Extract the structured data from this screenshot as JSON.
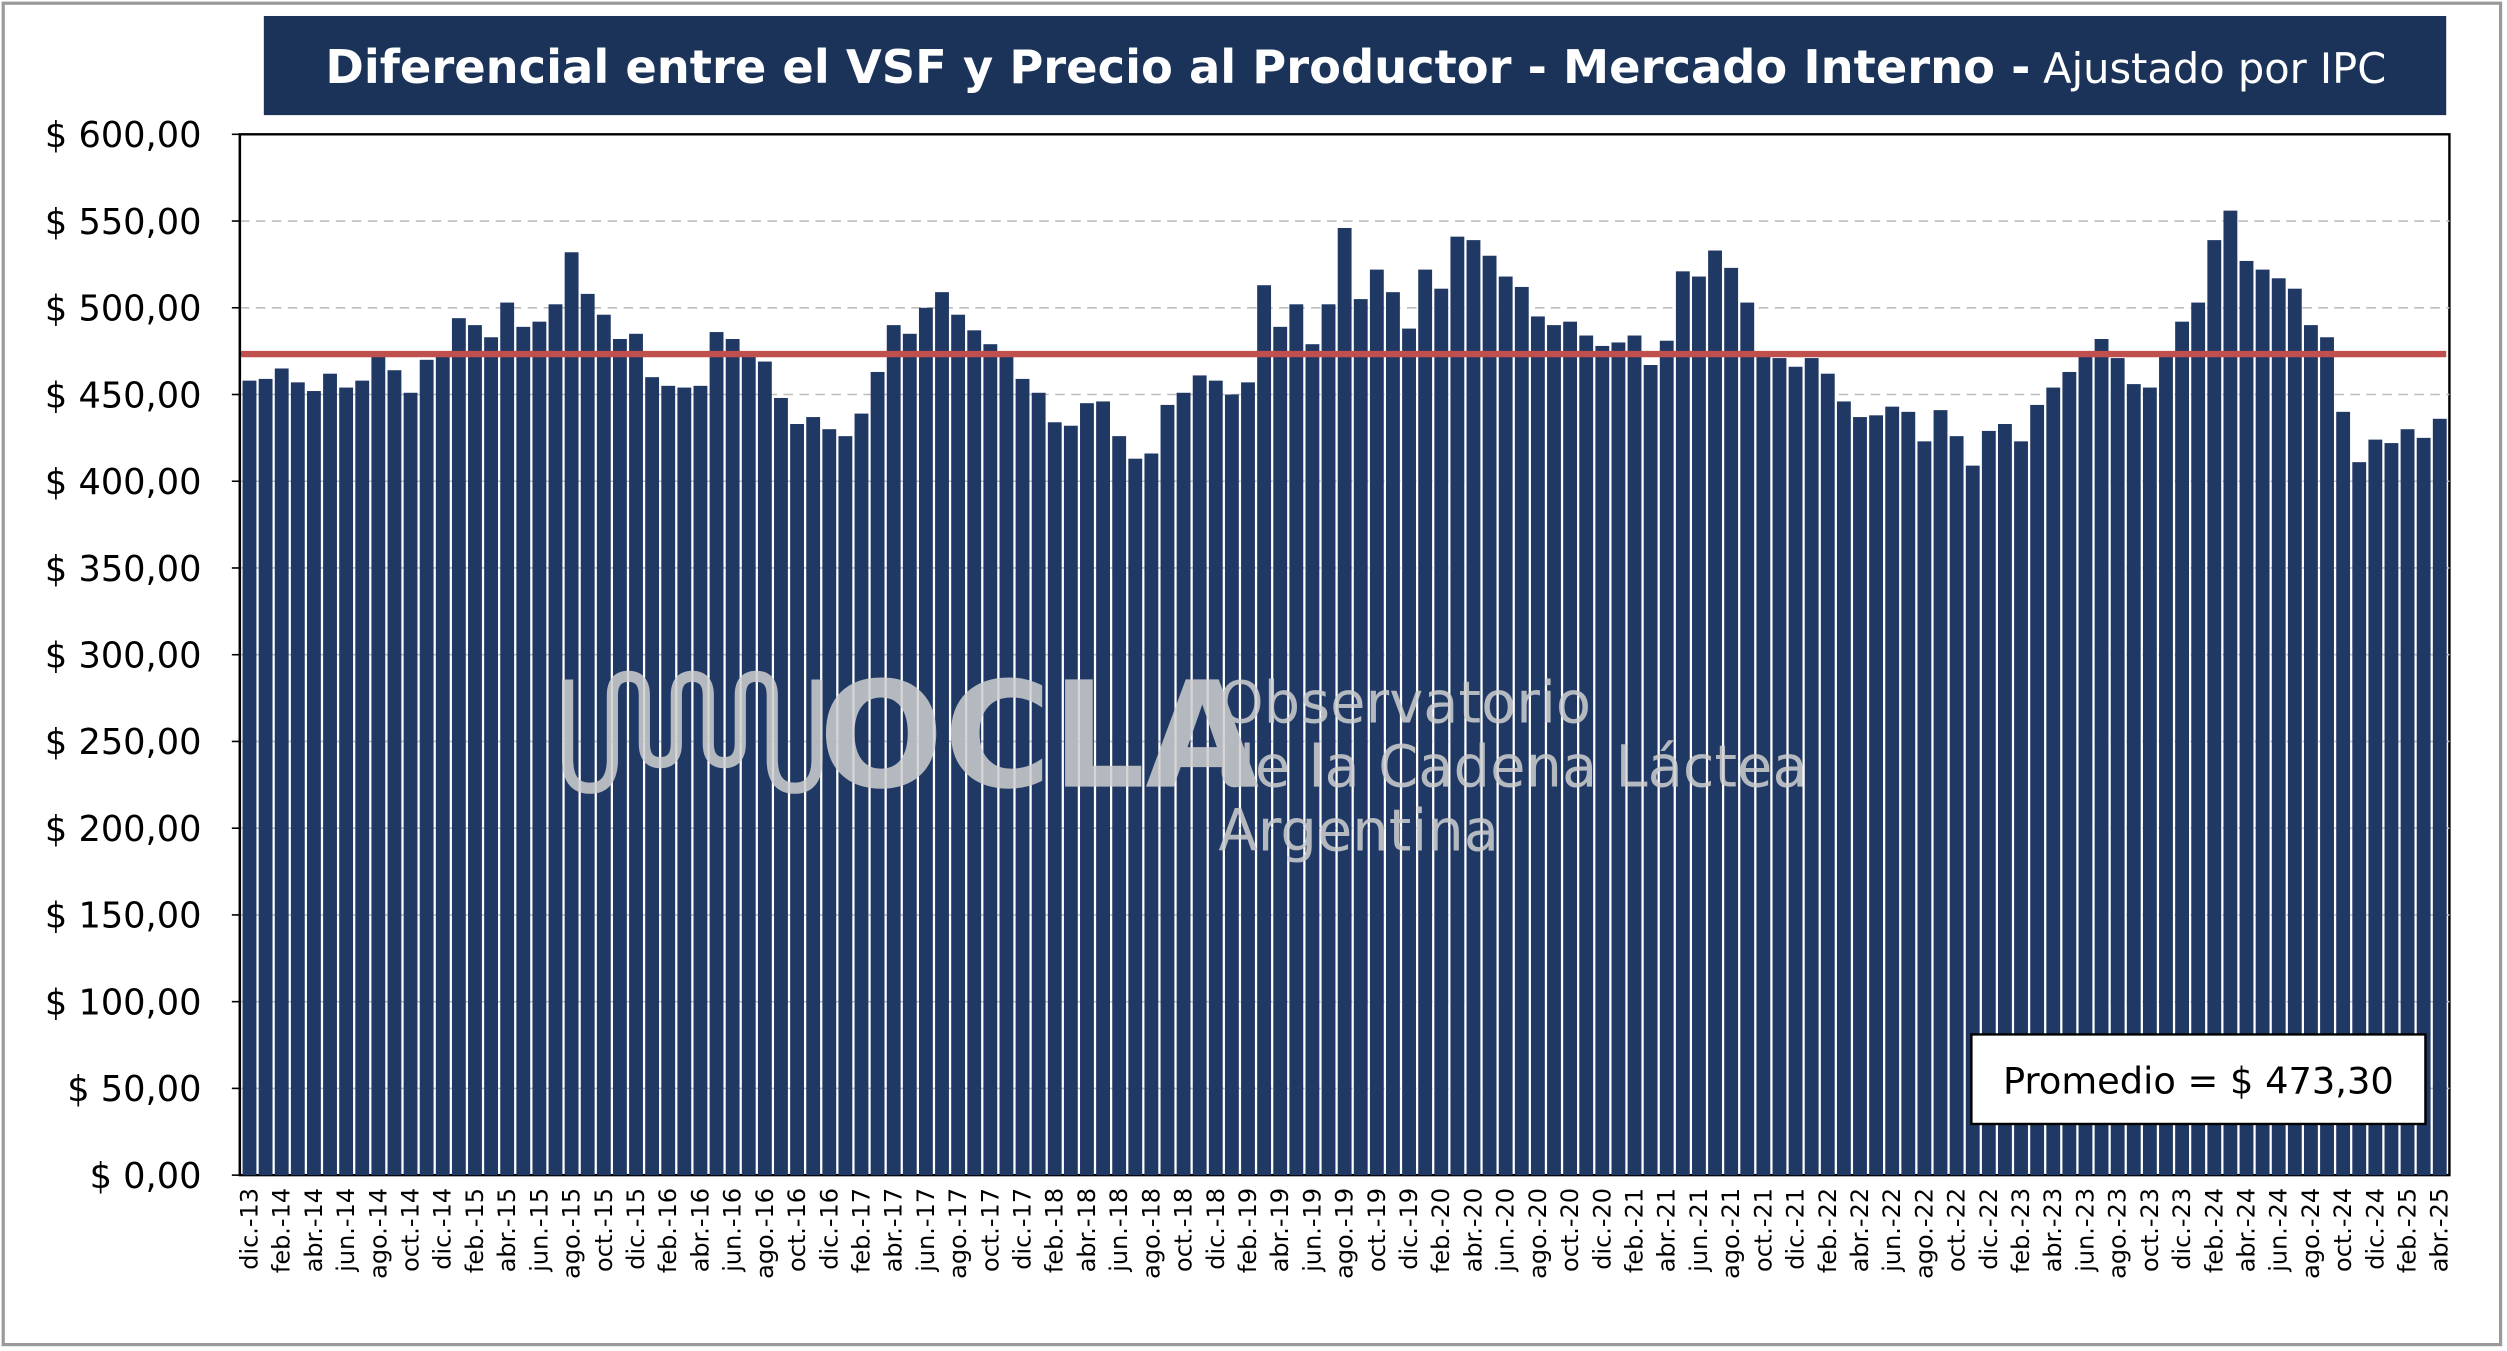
{
  "chart_data": {
    "type": "bar",
    "title": "Diferencial entre el VSF y Precio al Productor - Mercado Interno -",
    "subtitle": "Ajustado por IPC",
    "categories": [
      "dic.-13",
      null,
      "feb.-14",
      null,
      "abr.-14",
      null,
      "jun.-14",
      null,
      "ago.-14",
      null,
      "oct.-14",
      null,
      "dic.-14",
      null,
      "feb.-15",
      null,
      "abr.-15",
      null,
      "jun.-15",
      null,
      "ago.-15",
      null,
      "oct.-15",
      null,
      "dic.-15",
      null,
      "feb.-16",
      null,
      "abr.-16",
      null,
      "jun.-16",
      null,
      "ago.-16",
      null,
      "oct.-16",
      null,
      "dic.-16",
      null,
      "feb.-17",
      null,
      "abr.-17",
      null,
      "jun.-17",
      null,
      "ago.-17",
      null,
      "oct.-17",
      null,
      "dic.-17",
      null,
      "feb.-18",
      null,
      "abr.-18",
      null,
      "jun.-18",
      null,
      "ago.-18",
      null,
      "oct.-18",
      null,
      "dic.-18",
      null,
      "feb.-19",
      null,
      "abr.-19",
      null,
      "jun.-19",
      null,
      "ago.-19",
      null,
      "oct.-19",
      null,
      "dic.-19",
      null,
      "feb.-20",
      null,
      "abr.-20",
      null,
      "jun.-20",
      null,
      "ago.-20",
      null,
      "oct.-20",
      null,
      "dic.-20",
      null,
      "feb.-21",
      null,
      "abr.-21",
      null,
      "jun.-21",
      null,
      "ago.-21",
      null,
      "oct.-21",
      null,
      "dic.-21",
      null,
      "feb.-22",
      null,
      "abr.-22",
      null,
      "jun.-22",
      null,
      "ago.-22",
      null,
      "oct.-22",
      null,
      "dic.-22",
      null,
      "feb.-23",
      null,
      "abr.-23",
      null,
      "jun.-23",
      null,
      "ago.-23",
      null,
      "oct.-23",
      null,
      "dic.-23",
      null,
      "feb.-24",
      null,
      "abr.-24",
      null,
      "jun.-24",
      null,
      "ago.-24",
      null,
      "oct.-24",
      null,
      "dic.-24",
      null,
      "feb.-25",
      null,
      "abr.-25"
    ],
    "values": [
      458,
      459,
      465,
      457,
      452,
      462,
      454,
      458,
      472,
      464,
      451,
      470,
      472,
      494,
      490,
      483,
      503,
      489,
      492,
      502,
      532,
      508,
      496,
      482,
      485,
      460,
      455,
      454,
      455,
      486,
      482,
      475,
      469,
      448,
      433,
      437,
      430,
      426,
      439,
      463,
      490,
      485,
      500,
      509,
      496,
      487,
      479,
      472,
      459,
      451,
      434,
      432,
      445,
      446,
      426,
      413,
      416,
      444,
      451,
      461,
      458,
      450,
      457,
      513,
      489,
      502,
      479,
      502,
      546,
      505,
      522,
      509,
      488,
      522,
      511,
      541,
      539,
      530,
      518,
      512,
      495,
      490,
      492,
      484,
      478,
      480,
      484,
      467,
      481,
      521,
      518,
      533,
      523,
      503,
      473,
      471,
      466,
      471,
      462,
      446,
      437,
      438,
      443,
      440,
      423,
      441,
      426,
      409,
      429,
      433,
      423,
      444,
      454,
      463,
      474,
      482,
      471,
      456,
      454,
      472,
      492,
      503,
      539,
      556,
      527,
      522,
      517,
      511,
      490,
      483,
      440,
      411,
      424,
      422,
      430,
      425,
      436
    ],
    "color": "#1f3864",
    "ylim": [
      0,
      600
    ],
    "yticks": [
      {
        "value": 0,
        "label": "$ 0,00"
      },
      {
        "value": 50,
        "label": "$ 50,00"
      },
      {
        "value": 100,
        "label": "$ 100,00"
      },
      {
        "value": 150,
        "label": "$ 150,00"
      },
      {
        "value": 200,
        "label": "$ 200,00"
      },
      {
        "value": 250,
        "label": "$ 250,00"
      },
      {
        "value": 300,
        "label": "$ 300,00"
      },
      {
        "value": 350,
        "label": "$ 350,00"
      },
      {
        "value": 400,
        "label": "$ 400,00"
      },
      {
        "value": 450,
        "label": "$ 450,00"
      },
      {
        "value": 500,
        "label": "$ 500,00"
      },
      {
        "value": 550,
        "label": "$ 550,00"
      },
      {
        "value": 600,
        "label": "$ 600,00"
      }
    ],
    "grid": true,
    "average": {
      "value": 473.3,
      "label": "Promedio = $ 473,30",
      "color": "#c0504d"
    },
    "watermark": {
      "logo": "OCLA",
      "line1": "Observatorio",
      "line2": "de la Cadena Láctea",
      "line3": "Argentina"
    }
  }
}
